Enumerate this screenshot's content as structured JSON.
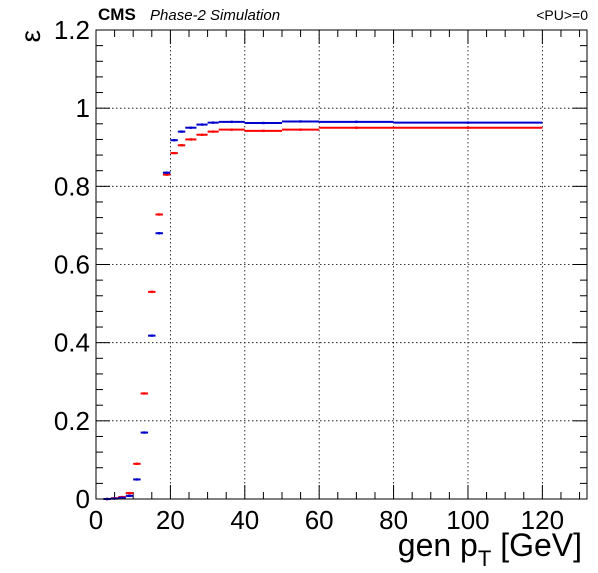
{
  "header": {
    "experiment": "CMS",
    "subtitle": "Phase-2 Simulation",
    "pileup": "<PU>=0"
  },
  "chart_data": {
    "type": "scatter",
    "xlabel_main": "gen p",
    "xlabel_sub": "T",
    "xlabel_unit": " [GeV]",
    "ylabel": "ε",
    "xlim": [
      0,
      132
    ],
    "ylim": [
      0,
      1.2
    ],
    "x_ticks": [
      0,
      20,
      40,
      60,
      80,
      100,
      120
    ],
    "y_ticks": [
      0,
      0.2,
      0.4,
      0.6,
      0.8,
      1,
      1.2
    ],
    "y_tick_labels": [
      "0",
      "0.2",
      "0.4",
      "0.6",
      "0.8",
      "1",
      "1.2"
    ],
    "grid": true,
    "series": [
      {
        "color": "#ff0000",
        "points": [
          {
            "x0": 2,
            "x1": 4,
            "y": 0.0
          },
          {
            "x0": 4,
            "x1": 6,
            "y": 0.002
          },
          {
            "x0": 6,
            "x1": 8,
            "y": 0.005
          },
          {
            "x0": 8,
            "x1": 10,
            "y": 0.015
          },
          {
            "x0": 10,
            "x1": 12,
            "y": 0.09
          },
          {
            "x0": 12,
            "x1": 14,
            "y": 0.27
          },
          {
            "x0": 14,
            "x1": 16,
            "y": 0.53
          },
          {
            "x0": 16,
            "x1": 18,
            "y": 0.728
          },
          {
            "x0": 18,
            "x1": 20,
            "y": 0.83
          },
          {
            "x0": 20,
            "x1": 22,
            "y": 0.885
          },
          {
            "x0": 22,
            "x1": 24,
            "y": 0.905
          },
          {
            "x0": 24,
            "x1": 27,
            "y": 0.92
          },
          {
            "x0": 27,
            "x1": 30,
            "y": 0.932
          },
          {
            "x0": 30,
            "x1": 33,
            "y": 0.94
          },
          {
            "x0": 33,
            "x1": 40,
            "y": 0.945
          },
          {
            "x0": 40,
            "x1": 50,
            "y": 0.942
          },
          {
            "x0": 50,
            "x1": 60,
            "y": 0.945
          },
          {
            "x0": 60,
            "x1": 80,
            "y": 0.95
          },
          {
            "x0": 80,
            "x1": 120,
            "y": 0.95
          }
        ]
      },
      {
        "color": "#0000cc",
        "points": [
          {
            "x0": 2,
            "x1": 4,
            "y": 0.0
          },
          {
            "x0": 4,
            "x1": 6,
            "y": 0.001
          },
          {
            "x0": 6,
            "x1": 8,
            "y": 0.003
          },
          {
            "x0": 8,
            "x1": 10,
            "y": 0.008
          },
          {
            "x0": 10,
            "x1": 12,
            "y": 0.05
          },
          {
            "x0": 12,
            "x1": 14,
            "y": 0.17
          },
          {
            "x0": 14,
            "x1": 16,
            "y": 0.418
          },
          {
            "x0": 16,
            "x1": 18,
            "y": 0.68
          },
          {
            "x0": 18,
            "x1": 20,
            "y": 0.835
          },
          {
            "x0": 20,
            "x1": 22,
            "y": 0.918
          },
          {
            "x0": 22,
            "x1": 24,
            "y": 0.94
          },
          {
            "x0": 24,
            "x1": 27,
            "y": 0.95
          },
          {
            "x0": 27,
            "x1": 30,
            "y": 0.958
          },
          {
            "x0": 30,
            "x1": 33,
            "y": 0.963
          },
          {
            "x0": 33,
            "x1": 40,
            "y": 0.965
          },
          {
            "x0": 40,
            "x1": 50,
            "y": 0.962
          },
          {
            "x0": 50,
            "x1": 60,
            "y": 0.966
          },
          {
            "x0": 60,
            "x1": 80,
            "y": 0.965
          },
          {
            "x0": 80,
            "x1": 120,
            "y": 0.963
          }
        ]
      }
    ]
  }
}
